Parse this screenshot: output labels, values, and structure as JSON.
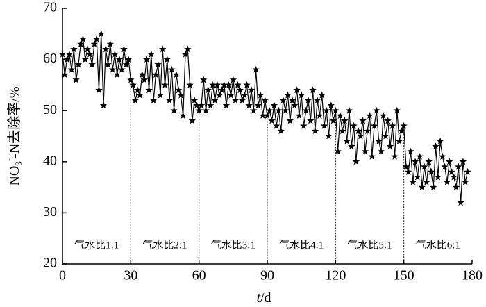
{
  "chart_data": {
    "type": "line",
    "x_label": {
      "italic": "t",
      "rest": "/d"
    },
    "y_label": {
      "main": "NO",
      "sub": "3",
      "sup": "-",
      "rest": "-N去除率/%"
    },
    "annotations": [
      "气水比1:1",
      "气水比2:1",
      "气水比3:1",
      "气水比4:1",
      "气水比5:1",
      "气水比6:1"
    ],
    "dividers": [
      30,
      60,
      90,
      120,
      150
    ],
    "xlim": [
      0,
      180
    ],
    "xticks": [
      0,
      30,
      60,
      90,
      120,
      150,
      180
    ],
    "ylim": [
      20,
      70
    ],
    "yticks": [
      20,
      30,
      40,
      50,
      60,
      70
    ],
    "color": "#000000",
    "marker": "star",
    "x": [
      0,
      1,
      2,
      3,
      4,
      5,
      6,
      7,
      8,
      9,
      10,
      11,
      12,
      13,
      14,
      15,
      16,
      17,
      18,
      19,
      20,
      21,
      22,
      23,
      24,
      25,
      26,
      27,
      28,
      29,
      30,
      31,
      32,
      33,
      34,
      35,
      36,
      37,
      38,
      39,
      40,
      41,
      42,
      43,
      44,
      45,
      46,
      47,
      48,
      49,
      50,
      51,
      52,
      53,
      54,
      55,
      56,
      57,
      58,
      59,
      60,
      61,
      62,
      63,
      64,
      65,
      66,
      67,
      68,
      69,
      70,
      71,
      72,
      73,
      74,
      75,
      76,
      77,
      78,
      79,
      80,
      81,
      82,
      83,
      84,
      85,
      86,
      87,
      88,
      89,
      90,
      91,
      92,
      93,
      94,
      95,
      96,
      97,
      98,
      99,
      100,
      101,
      102,
      103,
      104,
      105,
      106,
      107,
      108,
      109,
      110,
      111,
      112,
      113,
      114,
      115,
      116,
      117,
      118,
      119,
      120,
      121,
      122,
      123,
      124,
      125,
      126,
      127,
      128,
      129,
      130,
      131,
      132,
      133,
      134,
      135,
      136,
      137,
      138,
      139,
      140,
      141,
      142,
      143,
      144,
      145,
      146,
      147,
      148,
      149,
      150,
      151,
      152,
      153,
      154,
      155,
      156,
      157,
      158,
      159,
      160,
      161,
      162,
      163,
      164,
      165,
      166,
      167,
      168,
      169,
      170,
      171,
      172,
      173,
      174,
      175,
      176,
      177,
      178
    ],
    "values": [
      61,
      57,
      60,
      61,
      58,
      62,
      56,
      59,
      63,
      64,
      60,
      62,
      61,
      59,
      63,
      64,
      54,
      65,
      51,
      62,
      59,
      63,
      58,
      61,
      57,
      60,
      58,
      62,
      59,
      60,
      56,
      55,
      52,
      54,
      53,
      57,
      56,
      60,
      54,
      61,
      52,
      57,
      59,
      53,
      62,
      55,
      60,
      52,
      58,
      50,
      57,
      54,
      53,
      49,
      61,
      62,
      55,
      48,
      52,
      51,
      50,
      51,
      56,
      50,
      54,
      51,
      55,
      52,
      55,
      53,
      54,
      55,
      51,
      55,
      53,
      56,
      52,
      55,
      54,
      52,
      53,
      55,
      51,
      54,
      50,
      58,
      51,
      53,
      49,
      52,
      49,
      50,
      48,
      51,
      47,
      50,
      46,
      52,
      50,
      53,
      48,
      52,
      51,
      54,
      49,
      53,
      47,
      50,
      52,
      48,
      54,
      46,
      52,
      49,
      53,
      47,
      50,
      45,
      51,
      48,
      50,
      42,
      49,
      46,
      48,
      44,
      50,
      43,
      47,
      40,
      46,
      45,
      48,
      42,
      46,
      49,
      41,
      47,
      50,
      44,
      42,
      49,
      45,
      48,
      43,
      47,
      41,
      50,
      44,
      46,
      47,
      39,
      38,
      42,
      36,
      40,
      37,
      41,
      35,
      39,
      36,
      40,
      38,
      35,
      43,
      37,
      44,
      41,
      39,
      36,
      40,
      38,
      37,
      35,
      39,
      32,
      40,
      36,
      38
    ]
  }
}
